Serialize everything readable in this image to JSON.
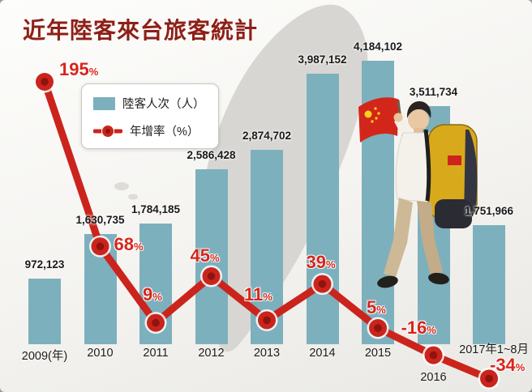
{
  "title": "近年陸客來台旅客統計",
  "legend": {
    "bars": "陸客人次（人）",
    "line": "年增率（%）"
  },
  "chart_data": {
    "type": "bar",
    "title": "近年陸客來台旅客統計",
    "categories": [
      "2009(年)",
      "2010",
      "2011",
      "2012",
      "2013",
      "2014",
      "2015",
      "2016",
      "2017年1~8月"
    ],
    "series": [
      {
        "name": "陸客人次（人）",
        "type": "bar",
        "color": "#7db0bd",
        "values": [
          972123,
          1630735,
          1784185,
          2586428,
          2874702,
          3987152,
          4184102,
          3511734,
          1751966
        ],
        "labels": [
          "972,123",
          "1,630,735",
          "1,784,185",
          "2,586,428",
          "2,874,702",
          "3,987,152",
          "4,184,102",
          "3,511,734",
          "1,751,966"
        ]
      },
      {
        "name": "年增率（%）",
        "type": "line",
        "color": "#cb241c",
        "unit": "%",
        "values": [
          195,
          68,
          9,
          45,
          11,
          39,
          5,
          -16,
          -34
        ],
        "labels": [
          "195",
          "68",
          "9",
          "45",
          "11",
          "39",
          "5",
          "-16",
          "-34"
        ]
      }
    ],
    "bar_axis": {
      "min": 0,
      "max": 4184102
    },
    "legend_position": "upper-left",
    "grid": false
  },
  "colors": {
    "title": "#8e1f17",
    "bar": "#7db0bd",
    "line": "#cb241c",
    "marker_center": "#8e1410",
    "pct_label": "#d6261b",
    "value_label": "#191919",
    "map": "#d7d6d2"
  }
}
